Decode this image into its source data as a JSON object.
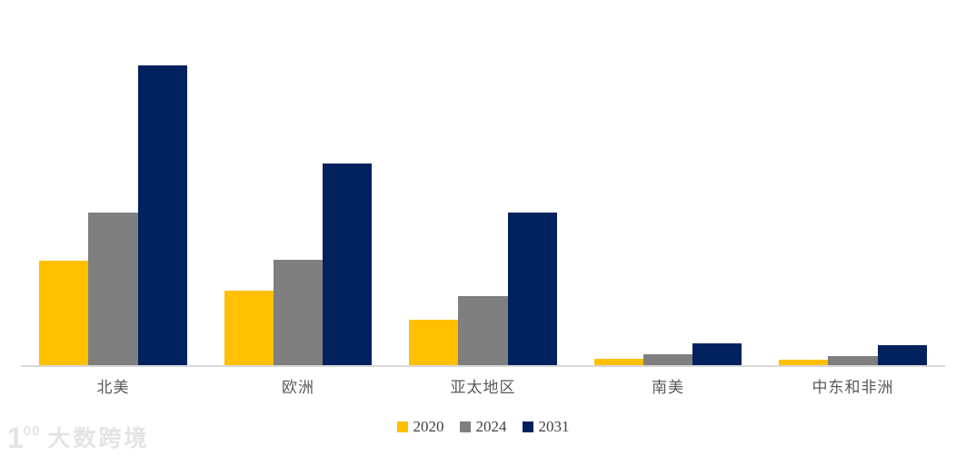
{
  "chart_data": {
    "type": "bar",
    "title": "",
    "xlabel": "",
    "ylabel": "",
    "categories": [
      "北美",
      "欧洲",
      "亚太地区",
      "南美",
      "中东和非洲"
    ],
    "series": [
      {
        "name": "2020",
        "color": "#FFC000",
        "values": [
          34.8,
          24.8,
          15.2,
          2.1,
          1.8
        ]
      },
      {
        "name": "2024",
        "color": "#7F7F7F",
        "values": [
          50.9,
          35.2,
          23.0,
          3.6,
          3.0
        ]
      },
      {
        "name": "2031",
        "color": "#02215F",
        "values": [
          100.0,
          67.3,
          50.9,
          7.3,
          6.7
        ]
      }
    ],
    "ylim": [
      0,
      100
    ],
    "grid": false,
    "legend_position": "bottom",
    "axis_line_color": "#d9d9d9"
  },
  "legend": {
    "items": [
      {
        "label": "2020",
        "color": "#FFC000"
      },
      {
        "label": "2024",
        "color": "#7F7F7F"
      },
      {
        "label": "2031",
        "color": "#02215F"
      }
    ]
  },
  "watermark": {
    "logo_prefix": "1",
    "logo_circles": "00",
    "text": "大数跨境"
  }
}
